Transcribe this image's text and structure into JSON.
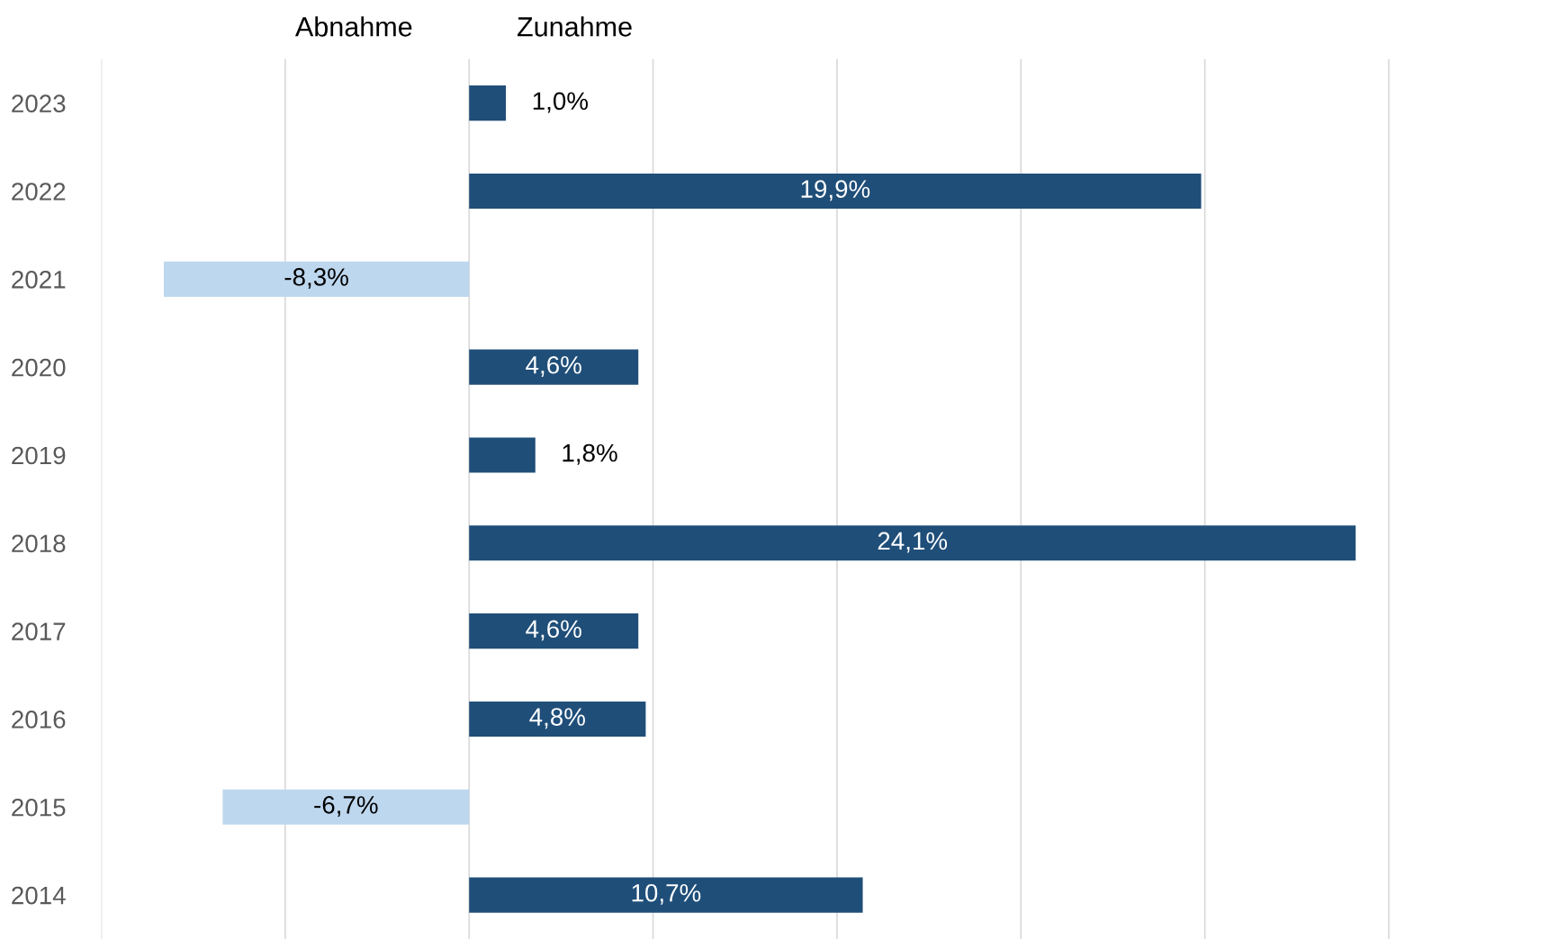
{
  "chart_data": {
    "type": "bar",
    "orientation": "horizontal",
    "categories": [
      "2023",
      "2022",
      "2021",
      "2020",
      "2019",
      "2018",
      "2017",
      "2016",
      "2015",
      "2014"
    ],
    "values": [
      1.0,
      19.9,
      -8.3,
      4.6,
      1.8,
      24.1,
      4.6,
      4.8,
      -6.7,
      10.7
    ],
    "colors": [
      "#1f4e79",
      "#1f4e79",
      "#bdd7ee",
      "#1f4e79",
      "#1f4e79",
      "#1f4e79",
      "#1f4e79",
      "#1f4e79",
      "#bdd7ee",
      "#1f4e79"
    ],
    "value_labels": [
      "1,0%",
      "19,9%",
      "-8,3%",
      "4,6%",
      "1,8%",
      "24,1%",
      "4,6%",
      "4,8%",
      "-6,7%",
      "10,7%"
    ],
    "xticks": [
      {
        "value": -10,
        "label": null
      },
      {
        "value": -5,
        "label": null
      },
      {
        "value": 0,
        "label": null
      },
      {
        "value": 5,
        "label": null
      },
      {
        "value": 10,
        "label": null
      },
      {
        "value": 15,
        "label": null
      },
      {
        "value": 20,
        "label": null
      },
      {
        "value": 25,
        "label": null
      }
    ],
    "tick_labels": "y",
    "grid": "x",
    "legend": false,
    "annotations": [
      "Abnahme",
      "Zunahme"
    ]
  }
}
